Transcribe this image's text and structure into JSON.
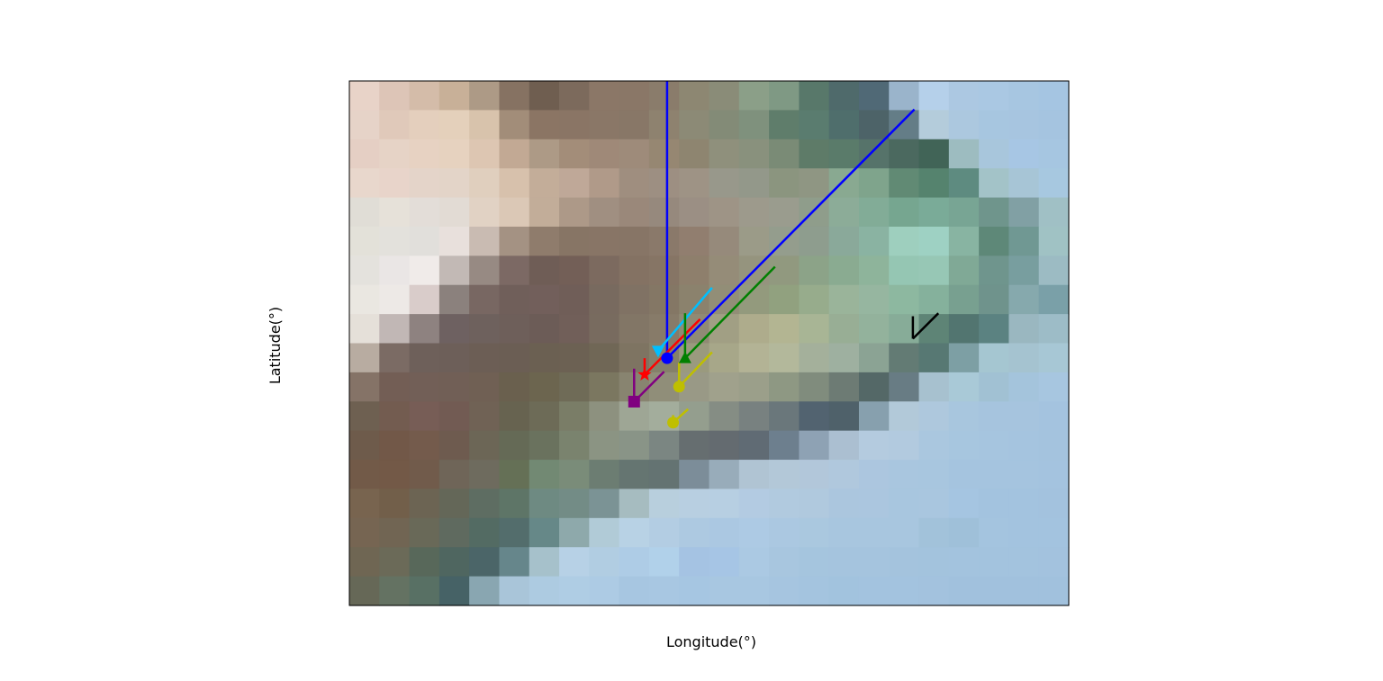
{
  "chart_data": {
    "type": "scatter",
    "title": "",
    "xlabel": "Longitude(°)",
    "ylabel": "Latitude(°)",
    "xlim": [
      0,
      24
    ],
    "ylim": [
      0,
      17.5
    ],
    "grid": false,
    "legend": "none",
    "background_raster": {
      "cols": 24,
      "rows": 18,
      "colors": [
        [
          "#e8d3c8",
          "#ddc5b7",
          "#d4bca9",
          "#c8b098",
          "#ad9a86",
          "#867262",
          "#6f5e50",
          "#7c6a5c",
          "#8b7767",
          "#8a7767",
          "#8a7c6b",
          "#8d8772",
          "#8a8c78",
          "#8b9f88",
          "#7f9984",
          "#58786a",
          "#4f6a6b",
          "#506976",
          "#9ab4cb",
          "#b5d0ea",
          "#acc8e2",
          "#aac8e3",
          "#a7c6e1",
          "#a5c5e2"
        ],
        [
          "#e6d3c8",
          "#e0c9ba",
          "#e4cfbd",
          "#e4d0bb",
          "#d8c3ac",
          "#a28d79",
          "#8b7564",
          "#8a7565",
          "#8a7767",
          "#887767",
          "#8e826f",
          "#8c8a76",
          "#838b77",
          "#7f917d",
          "#5f7d6b",
          "#5a7c6f",
          "#4f6e6c",
          "#4d6368",
          "#647d87",
          "#b4ccdb",
          "#acc8df",
          "#a7c6e0",
          "#a7c5e0",
          "#a5c4e0"
        ],
        [
          "#e5cfc4",
          "#e6d3c6",
          "#e7d2c2",
          "#e6d2bf",
          "#ddc6b2",
          "#c2a994",
          "#ad9a86",
          "#a38d79",
          "#9f8978",
          "#9e8b7a",
          "#968772",
          "#8e8570",
          "#8f907c",
          "#89917d",
          "#7a8b76",
          "#5e7b68",
          "#5a7b6a",
          "#56736a",
          "#4b695f",
          "#416457",
          "#9dbcc0",
          "#a8c6dc",
          "#a7c6e4",
          "#a6c6e1"
        ],
        [
          "#e8d7cc",
          "#e8d4ca",
          "#e4d4c9",
          "#e3d4c8",
          "#e0cfbe",
          "#d7c1ac",
          "#c3ad99",
          "#bfa898",
          "#b09a89",
          "#9f8e7f",
          "#9d8f82",
          "#9e9385",
          "#98988b",
          "#93988a",
          "#8b957f",
          "#8f9683",
          "#89a991",
          "#7fa48c",
          "#618a74",
          "#55836e",
          "#5e8b80",
          "#a3c3c8",
          "#a7c5d6",
          "#a7c8e0"
        ],
        [
          "#e0ddd6",
          "#e6e1d9",
          "#e3ddd8",
          "#e2dbd4",
          "#e1d2c4",
          "#dbc8b6",
          "#c2ad99",
          "#ad9988",
          "#a08f81",
          "#9a887a",
          "#96897d",
          "#9b8f84",
          "#9e9486",
          "#9d9a8c",
          "#9a9c8e",
          "#8f9d8b",
          "#8cac98",
          "#82ac97",
          "#76a690",
          "#7aab98",
          "#78a594",
          "#6f958c",
          "#81a0a4",
          "#a0c0c5"
        ],
        [
          "#e3e1d9",
          "#e3e1dc",
          "#e1dfdb",
          "#e8e0dc",
          "#c9bbb2",
          "#a49283",
          "#8f7c6c",
          "#877565",
          "#887566",
          "#877566",
          "#8a796a",
          "#917e6f",
          "#968a7b",
          "#9b9b88",
          "#949d8d",
          "#8e9d8e",
          "#8aa99a",
          "#8ab3a2",
          "#9ecfbe",
          "#9ed1c3",
          "#88b4a2",
          "#5e8878",
          "#709893",
          "#a0c2c4"
        ],
        [
          "#e4e2dd",
          "#eae6e5",
          "#f0ebe9",
          "#c2b9b5",
          "#978a83",
          "#7c6964",
          "#6f5d56",
          "#735f57",
          "#7c6a5f",
          "#847263",
          "#867565",
          "#8e7f6c",
          "#958c78",
          "#95947e",
          "#91997f",
          "#8ca388",
          "#8aab91",
          "#8eb49b",
          "#95c6b3",
          "#97c7b5",
          "#80a996",
          "#6f958d",
          "#789e9f",
          "#9cbbc3"
        ],
        [
          "#eae7e1",
          "#ede9e6",
          "#d9ccca",
          "#8b817d",
          "#786762",
          "#705f5a",
          "#725f5b",
          "#705e58",
          "#786a5f",
          "#807264",
          "#847765",
          "#8b826d",
          "#928e77",
          "#939a7d",
          "#91a17f",
          "#97ac8c",
          "#9ab49a",
          "#96b6a0",
          "#8db8a0",
          "#85b19c",
          "#78a090",
          "#6f938c",
          "#86a9ad",
          "#7aa0a8"
        ],
        [
          "#e5e0d9",
          "#c1b7b5",
          "#8e8280",
          "#6e6161",
          "#6e615d",
          "#6e5f5a",
          "#6c5c57",
          "#715f59",
          "#786b5f",
          "#827666",
          "#877b69",
          "#908a74",
          "#a19f84",
          "#aeac8c",
          "#b3b592",
          "#a8b595",
          "#98ae95",
          "#93b29c",
          "#87ac98",
          "#5e8476",
          "#527570",
          "#5b8281",
          "#9ab7c0",
          "#9dbcc7"
        ],
        [
          "#b8aca1",
          "#7b6b64",
          "#6e605a",
          "#6d5f59",
          "#6c5e55",
          "#6b5e54",
          "#6b6052",
          "#6c6153",
          "#706756",
          "#7e7462",
          "#85806a",
          "#9a9a7e",
          "#a7a789",
          "#b3b395",
          "#b3b89b",
          "#a4b09b",
          "#9eb0a0",
          "#8ba394",
          "#637b74",
          "#577873",
          "#7d9fa4",
          "#a5c6d1",
          "#a5c3d0",
          "#a7c7d5"
        ],
        [
          "#857367",
          "#735e55",
          "#725f57",
          "#715f56",
          "#706054",
          "#6a604e",
          "#6c654f",
          "#6f6b57",
          "#7b7760",
          "#888470",
          "#908e79",
          "#999986",
          "#a0a18c",
          "#9b9f8a",
          "#8e9883",
          "#808c7d",
          "#6d7b74",
          "#546867",
          "#687c84",
          "#a7c1cf",
          "#a9c9d7",
          "#a1c1d3",
          "#a4c4dc",
          "#a7c6e0"
        ],
        [
          "#6e6051",
          "#735c50",
          "#775d56",
          "#725b53",
          "#706255",
          "#676350",
          "#6d6b57",
          "#7a7d67",
          "#8d917f",
          "#9ea695",
          "#a3ad9c",
          "#949e8e",
          "#858d84",
          "#788180",
          "#6a777b",
          "#526370",
          "#4f616a",
          "#87a0ae",
          "#b2c9d9",
          "#aec8dd",
          "#a8c6de",
          "#a6c4de",
          "#a6c4de",
          "#a4c3df"
        ],
        [
          "#6e5b4b",
          "#725848",
          "#745b4c",
          "#6e5b4f",
          "#6c6656",
          "#656a56",
          "#6a725e",
          "#7a836e",
          "#8b9483",
          "#899487",
          "#7b8682",
          "#666e70",
          "#646b70",
          "#606b74",
          "#6d7f8e",
          "#8ea2b4",
          "#abbfd1",
          "#b4cbdf",
          "#b2cadf",
          "#aac7df",
          "#a7c6df",
          "#a6c5df",
          "#a5c4df",
          "#a4c3de"
        ],
        [
          "#725a48",
          "#735947",
          "#715b4b",
          "#6f6558",
          "#6e6b5e",
          "#657056",
          "#728973",
          "#7a8c79",
          "#6c7d72",
          "#657571",
          "#647372",
          "#7c8d99",
          "#98acba",
          "#b0c4d3",
          "#b3c8d8",
          "#b2c7da",
          "#b0c8dd",
          "#acc6df",
          "#a9c6df",
          "#a8c6df",
          "#a5c4df",
          "#a5c4df",
          "#a5c4df",
          "#a4c3df"
        ],
        [
          "#78644f",
          "#725f4a",
          "#6c6453",
          "#646758",
          "#5e6d62",
          "#5e7567",
          "#6e8a82",
          "#738c86",
          "#7b9395",
          "#a6bcc0",
          "#b8cfdd",
          "#b8cfe1",
          "#b7cfe2",
          "#b3cbe2",
          "#b1cadf",
          "#b0c9de",
          "#abc6de",
          "#abc6df",
          "#a8c6df",
          "#a9c6df",
          "#a5c5e1",
          "#a3c3df",
          "#a3c3df",
          "#a3c2de"
        ],
        [
          "#766552",
          "#716553",
          "#696958",
          "#5f6a5f",
          "#536b63",
          "#536d6c",
          "#668888",
          "#8ea9ab",
          "#b1cbd7",
          "#b8d2e5",
          "#b3cde3",
          "#adc9e1",
          "#abc8e2",
          "#adcae4",
          "#abc8e1",
          "#aac8df",
          "#a8c6df",
          "#a8c6df",
          "#a8c6df",
          "#a2c2da",
          "#9fc0d9",
          "#a4c4df",
          "#a3c3df",
          "#a3c3df"
        ],
        [
          "#6f6653",
          "#6b6a58",
          "#58685a",
          "#4f6660",
          "#4b6568",
          "#66868b",
          "#a6c1cb",
          "#b7d1e6",
          "#b1cde2",
          "#aecce6",
          "#b1d1ea",
          "#a5c3e3",
          "#a6c5e5",
          "#abc9e3",
          "#a8c6df",
          "#a5c5de",
          "#a5c4de",
          "#a5c4de",
          "#a4c3dd",
          "#a3c3dd",
          "#a3c3de",
          "#a3c3de",
          "#a3c3de",
          "#a3c2de"
        ],
        [
          "#666857",
          "#647262",
          "#587064",
          "#466266",
          "#89a6b1",
          "#a9c5d9",
          "#adcbe1",
          "#afcde4",
          "#adcbe4",
          "#a7c6e1",
          "#a8c7e2",
          "#a6c6e2",
          "#a8c7e1",
          "#a8c7e1",
          "#a6c5e0",
          "#a4c4df",
          "#a2c3de",
          "#a3c3df",
          "#a3c3df",
          "#a3c2de",
          "#a1c1dd",
          "#a1c1dd",
          "#a1c1dd",
          "#a1c1dd"
        ]
      ]
    },
    "series": [
      {
        "marker": "circle",
        "color": "#0000ff",
        "x": 10.6,
        "y": 8.25,
        "vector": {
          "dx": 0,
          "dy": 9.25
        }
      },
      {
        "marker": "circle",
        "color": "#0000ff",
        "x": 10.6,
        "y": 8.25,
        "vector": {
          "dx": 8.25,
          "dy": 8.3
        }
      },
      {
        "marker": "star",
        "color": "#ff0000",
        "x": 9.85,
        "y": 7.7,
        "vector": {
          "dx": 1.85,
          "dy": 1.85
        }
      },
      {
        "marker": "star",
        "color": "#ff0000",
        "x": 9.85,
        "y": 7.7,
        "vector": {
          "dx": 0,
          "dy": 0.55
        }
      },
      {
        "marker": "triangle-down",
        "color": "#00bfff",
        "x": 10.3,
        "y": 8.5,
        "vector": {
          "dx": 1.8,
          "dy": 2.1
        }
      },
      {
        "marker": "triangle-up",
        "color": "#008000",
        "x": 11.2,
        "y": 8.25,
        "vector": {
          "dx": 3.0,
          "dy": 3.05
        }
      },
      {
        "marker": "triangle-up",
        "color": "#008000",
        "x": 11.2,
        "y": 8.25,
        "vector": {
          "dx": 0,
          "dy": 1.5
        }
      },
      {
        "marker": "square",
        "color": "#800080",
        "x": 9.5,
        "y": 6.8,
        "vector": {
          "dx": 1.0,
          "dy": 1.0
        }
      },
      {
        "marker": "square",
        "color": "#800080",
        "x": 9.5,
        "y": 6.8,
        "vector": {
          "dx": 0,
          "dy": 1.1
        }
      },
      {
        "marker": "circle",
        "color": "#bfbf00",
        "x": 11.0,
        "y": 7.3,
        "vector": {
          "dx": 1.1,
          "dy": 1.15
        }
      },
      {
        "marker": "circle",
        "color": "#bfbf00",
        "x": 11.0,
        "y": 7.3,
        "vector": {
          "dx": 0,
          "dy": 0.8
        }
      },
      {
        "marker": "circle",
        "color": "#bfbf00",
        "x": 10.8,
        "y": 6.1,
        "vector": {
          "dx": 0.5,
          "dy": 0.45
        }
      },
      {
        "marker": "circle",
        "color": "#bfbf00",
        "x": 10.8,
        "y": 6.1,
        "vector": {
          "dx": 0,
          "dy": 0.25
        }
      },
      {
        "marker": "none",
        "color": "#000000",
        "x": 18.8,
        "y": 8.9,
        "vector": {
          "dx": 0.85,
          "dy": 0.85
        }
      },
      {
        "marker": "none",
        "color": "#000000",
        "x": 18.8,
        "y": 8.9,
        "vector": {
          "dx": 0,
          "dy": 0.75
        }
      }
    ]
  }
}
